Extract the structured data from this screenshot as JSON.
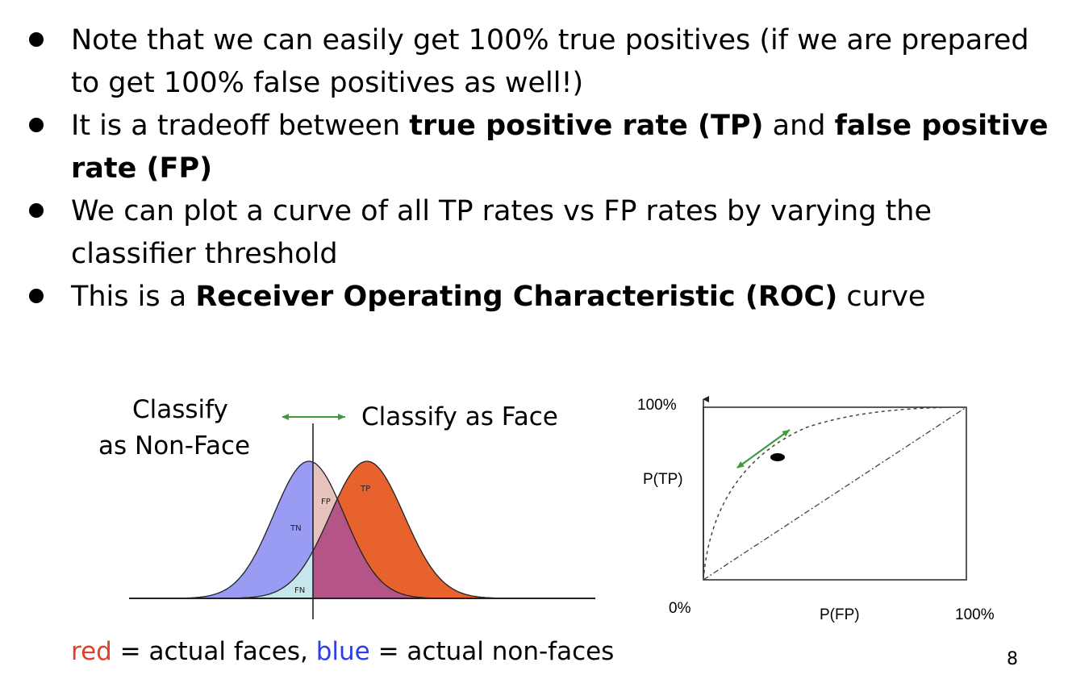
{
  "bullets": [
    {
      "parts": [
        {
          "text": "Note that we can easily get 100% true positives (if we are prepared to get 100% false positives as well!)",
          "bold": false
        }
      ]
    },
    {
      "parts": [
        {
          "text": "It is a tradeoff between ",
          "bold": false
        },
        {
          "text": "true positive rate (TP)",
          "bold": true
        },
        {
          "text": " and ",
          "bold": false
        },
        {
          "text": "false positive rate (FP)",
          "bold": true
        }
      ]
    },
    {
      "parts": [
        {
          "text": "We can plot a curve of all TP rates vs FP rates by varying the classifier threshold",
          "bold": false
        }
      ]
    },
    {
      "parts": [
        {
          "text": "This is a ",
          "bold": false
        },
        {
          "text": "Receiver Operating Characteristic (ROC)",
          "bold": true
        },
        {
          "text": " curve",
          "bold": false
        }
      ]
    }
  ],
  "left_figure": {
    "label_nonface_line1": "Classify",
    "label_nonface_line2": "as Non-Face",
    "label_face": "Classify as Face",
    "region_tn": "TN",
    "region_fp": "FP",
    "region_tp": "TP",
    "region_fn": "FN",
    "colors": {
      "nonface": "#9a9bf2",
      "face": "#e8622d",
      "overlap": "#b55487",
      "fp": "#e8c3bd",
      "fn": "#c6e6ec",
      "arrow": "#3d9a3d"
    }
  },
  "roc_figure": {
    "y_top_label": "100%",
    "y_axis_label": "P(TP)",
    "origin_label": "0%",
    "x_axis_label": "P(FP)",
    "x_right_label": "100%",
    "arrow_color": "#3d9a3d"
  },
  "caption": {
    "red_word": "red",
    "middle": " = actual faces, ",
    "blue_word": "blue",
    "end": " = actual non-faces"
  },
  "page_number": "8"
}
